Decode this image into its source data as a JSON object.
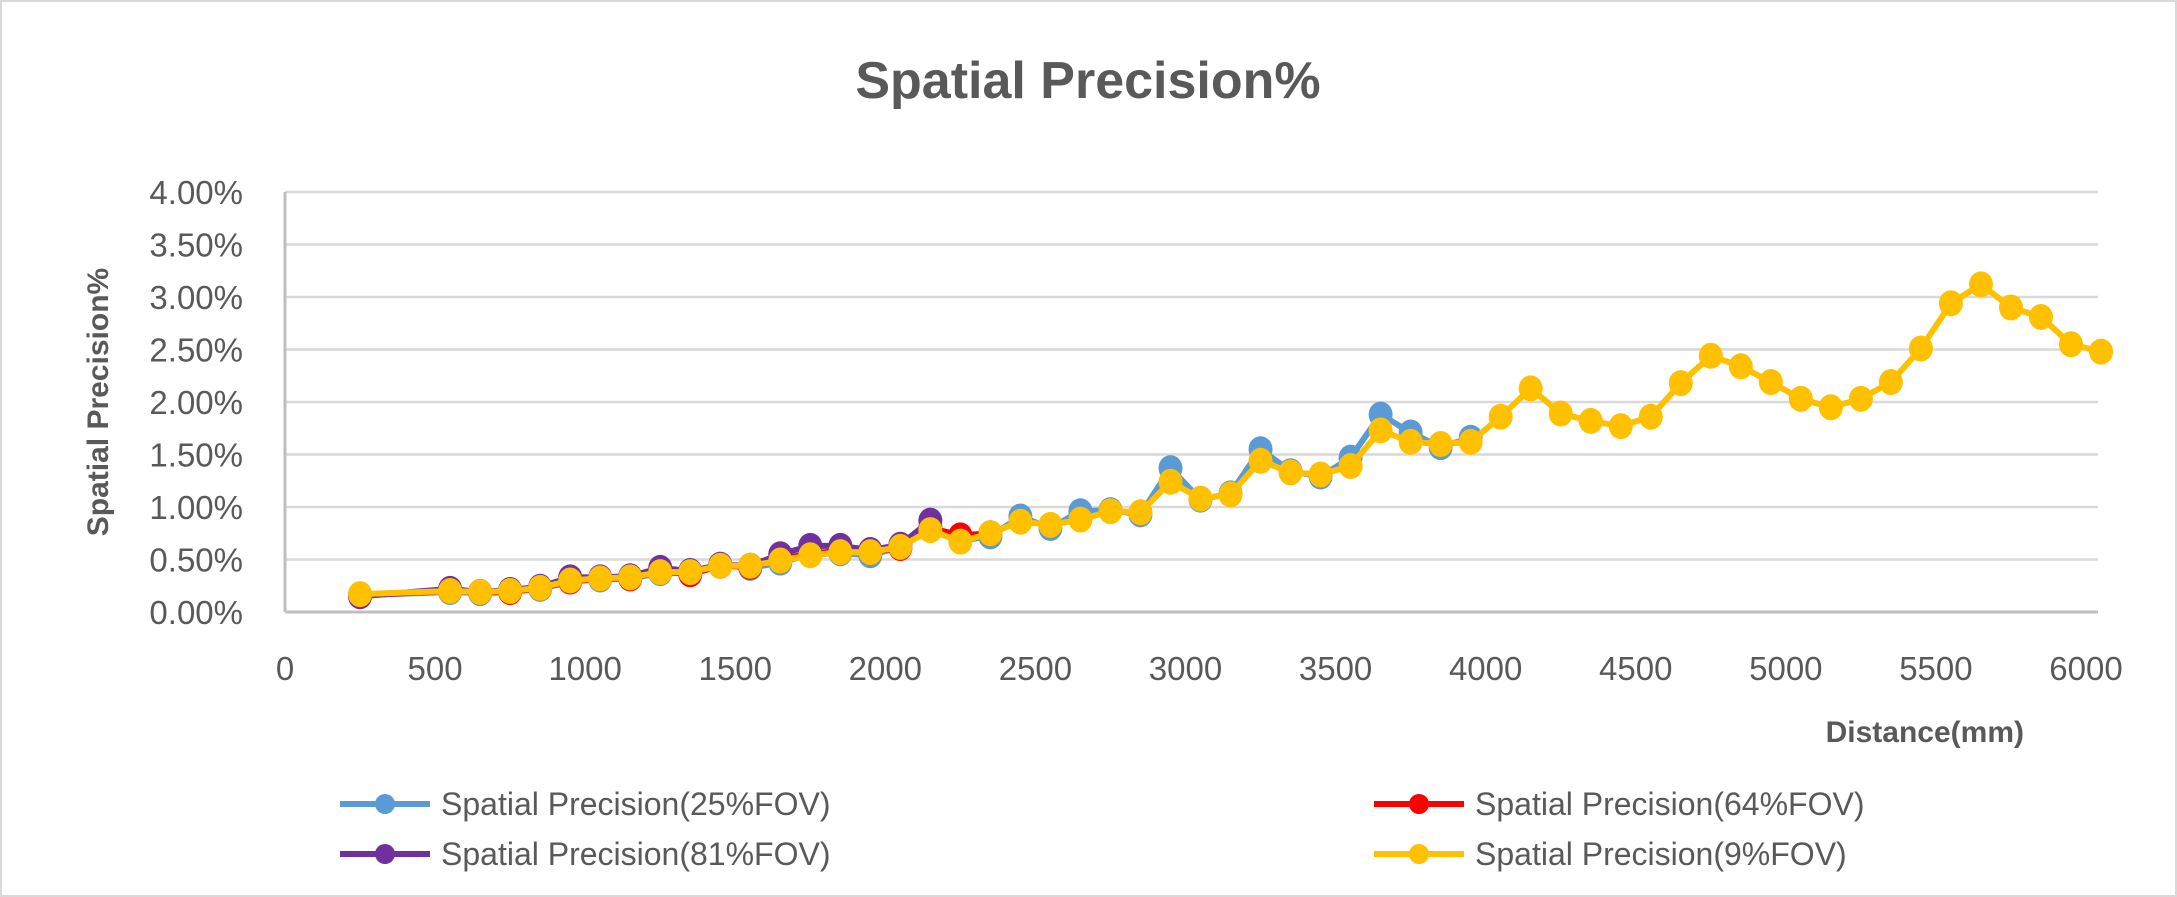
{
  "chart_data": {
    "type": "line",
    "title": "Spatial Precision%",
    "xlabel": "Distance(mm)",
    "ylabel": "Spatial Precision%",
    "xlim": [
      0,
      6000
    ],
    "ylim": [
      0,
      4
    ],
    "x_ticks": [
      "0",
      "500",
      "1000",
      "1500",
      "2000",
      "2500",
      "3000",
      "3500",
      "4000",
      "4500",
      "5000",
      "5500",
      "6000"
    ],
    "y_ticks": [
      "0.00%",
      "0.50%",
      "1.00%",
      "1.50%",
      "2.00%",
      "2.50%",
      "3.00%",
      "3.50%",
      "4.00%"
    ],
    "grid": true,
    "legend_position": "bottom",
    "series": [
      {
        "name": "Spatial Precision(25%FOV)",
        "color": "#5B9BD5",
        "x": [
          250,
          550,
          650,
          750,
          850,
          950,
          1050,
          1150,
          1250,
          1350,
          1450,
          1550,
          1650,
          1750,
          1850,
          1950,
          2050,
          2150,
          2250,
          2350,
          2450,
          2550,
          2650,
          2750,
          2850,
          2950,
          3050,
          3150,
          3250,
          3350,
          3450,
          3550,
          3650,
          3750,
          3850,
          3950
        ],
        "y": [
          0.16,
          0.19,
          0.18,
          0.19,
          0.22,
          0.29,
          0.31,
          0.32,
          0.37,
          0.37,
          0.45,
          0.42,
          0.47,
          0.55,
          0.56,
          0.54,
          0.62,
          0.79,
          0.68,
          0.72,
          0.91,
          0.8,
          0.96,
          0.97,
          0.93,
          1.37,
          1.07,
          1.13,
          1.55,
          1.34,
          1.29,
          1.47,
          1.88,
          1.71,
          1.57,
          1.66
        ]
      },
      {
        "name": "Spatial Precision(64%FOV)",
        "color": "#FF0000",
        "x": [
          250,
          550,
          650,
          750,
          850,
          950,
          1050,
          1150,
          1250,
          1350,
          1450,
          1550,
          1650,
          1750,
          1850,
          1950,
          2050,
          2150,
          2250,
          2350
        ],
        "y": [
          0.16,
          0.2,
          0.19,
          0.19,
          0.23,
          0.29,
          0.32,
          0.32,
          0.39,
          0.36,
          0.44,
          0.43,
          0.5,
          0.56,
          0.58,
          0.57,
          0.61,
          0.8,
          0.73,
          0.75
        ]
      },
      {
        "name": "Spatial Precision(81%FOV)",
        "color": "#7030A0",
        "x": [
          250,
          550,
          650,
          750,
          850,
          950,
          1050,
          1150,
          1250,
          1350,
          1450,
          1550,
          1650,
          1750,
          1850,
          1950,
          2050,
          2150
        ],
        "y": [
          0.15,
          0.22,
          0.19,
          0.21,
          0.24,
          0.33,
          0.33,
          0.34,
          0.42,
          0.39,
          0.45,
          0.44,
          0.55,
          0.63,
          0.63,
          0.59,
          0.64,
          0.87
        ]
      },
      {
        "name": "Spatial Precision(9%FOV)",
        "color": "#FFC000",
        "x": [
          250,
          550,
          650,
          750,
          850,
          950,
          1050,
          1150,
          1250,
          1350,
          1450,
          1550,
          1650,
          1750,
          1850,
          1950,
          2050,
          2150,
          2250,
          2350,
          2450,
          2550,
          2650,
          2750,
          2850,
          2950,
          3050,
          3150,
          3250,
          3350,
          3450,
          3550,
          3650,
          3750,
          3850,
          3950,
          4050,
          4150,
          4250,
          4350,
          4450,
          4550,
          4650,
          4750,
          4850,
          4950,
          5050,
          5150,
          5250,
          5350,
          5450,
          5550,
          5650,
          5750,
          5850,
          5950,
          6050
        ],
        "y": [
          0.17,
          0.2,
          0.19,
          0.2,
          0.23,
          0.3,
          0.32,
          0.33,
          0.38,
          0.38,
          0.44,
          0.44,
          0.49,
          0.54,
          0.57,
          0.57,
          0.62,
          0.78,
          0.67,
          0.75,
          0.86,
          0.83,
          0.88,
          0.96,
          0.95,
          1.24,
          1.08,
          1.12,
          1.44,
          1.33,
          1.31,
          1.39,
          1.73,
          1.62,
          1.6,
          1.62,
          1.86,
          2.13,
          1.89,
          1.82,
          1.77,
          1.86,
          2.18,
          2.44,
          2.34,
          2.19,
          2.03,
          1.95,
          2.03,
          2.19,
          2.51,
          2.94,
          3.12,
          2.9,
          2.81,
          2.55,
          2.48
        ]
      }
    ]
  }
}
